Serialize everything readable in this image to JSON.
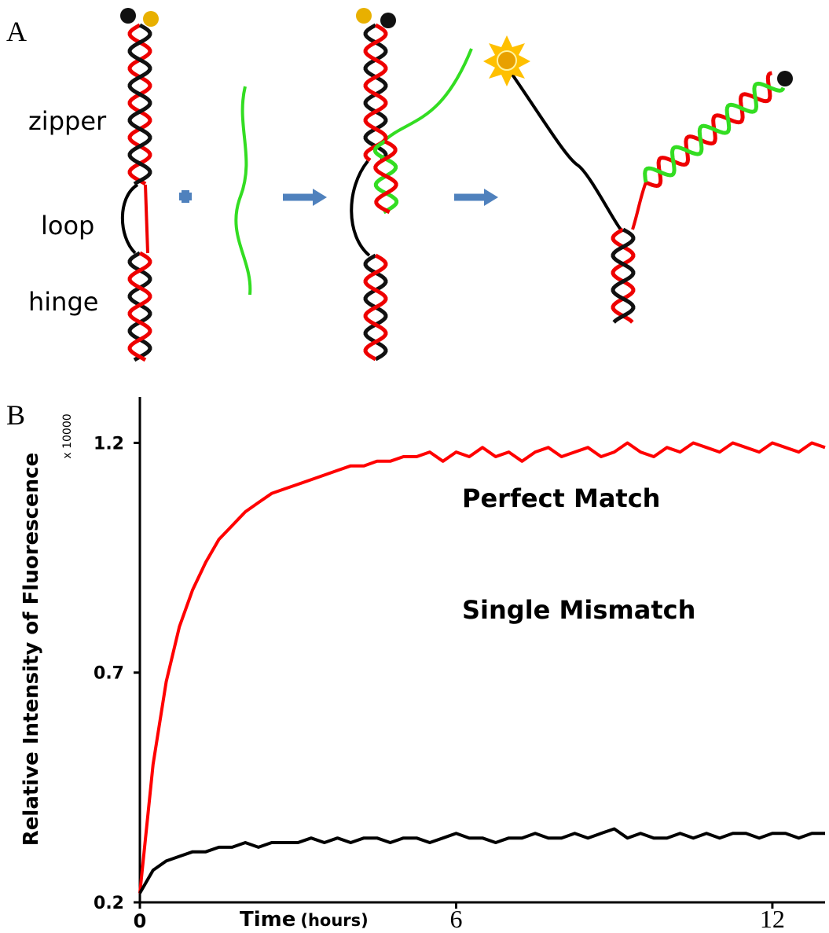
{
  "diagram": {
    "panel_label": "A",
    "labels": [
      "zipper",
      "loop",
      "hinge"
    ]
  },
  "chart_data": {
    "type": "line",
    "panel_label": "B",
    "y_label": "Relative Intensity of Fluorescence",
    "y_multiplier": "x 10000",
    "x_label": "Time",
    "x_unit": "(hours)",
    "x": [
      0,
      0.25,
      0.5,
      0.75,
      1,
      1.25,
      1.5,
      1.75,
      2,
      2.25,
      2.5,
      2.75,
      3,
      3.25,
      3.5,
      3.75,
      4,
      4.25,
      4.5,
      4.75,
      5,
      5.25,
      5.5,
      5.75,
      6,
      6.25,
      6.5,
      6.75,
      7,
      7.25,
      7.5,
      7.75,
      8,
      8.25,
      8.5,
      8.75,
      9,
      9.25,
      9.5,
      9.75,
      10,
      10.25,
      10.5,
      10.75,
      11,
      11.25,
      11.5,
      11.75,
      12,
      12.25,
      12.5,
      12.75,
      13
    ],
    "series": [
      {
        "name": "Perfect Match",
        "color": "#ff0000",
        "values": [
          0.22,
          0.5,
          0.68,
          0.8,
          0.88,
          0.94,
          0.99,
          1.02,
          1.05,
          1.07,
          1.09,
          1.1,
          1.11,
          1.12,
          1.13,
          1.14,
          1.15,
          1.15,
          1.16,
          1.16,
          1.17,
          1.17,
          1.18,
          1.16,
          1.18,
          1.17,
          1.19,
          1.17,
          1.18,
          1.16,
          1.18,
          1.19,
          1.17,
          1.18,
          1.19,
          1.17,
          1.18,
          1.2,
          1.18,
          1.17,
          1.19,
          1.18,
          1.2,
          1.19,
          1.18,
          1.2,
          1.19,
          1.18,
          1.2,
          1.19,
          1.18,
          1.2,
          1.19
        ]
      },
      {
        "name": "Single Mismatch",
        "color": "#000000",
        "values": [
          0.22,
          0.27,
          0.29,
          0.3,
          0.31,
          0.31,
          0.32,
          0.32,
          0.33,
          0.32,
          0.33,
          0.33,
          0.33,
          0.34,
          0.33,
          0.34,
          0.33,
          0.34,
          0.34,
          0.33,
          0.34,
          0.34,
          0.33,
          0.34,
          0.35,
          0.34,
          0.34,
          0.33,
          0.34,
          0.34,
          0.35,
          0.34,
          0.34,
          0.35,
          0.34,
          0.35,
          0.36,
          0.34,
          0.35,
          0.34,
          0.34,
          0.35,
          0.34,
          0.35,
          0.34,
          0.35,
          0.35,
          0.34,
          0.35,
          0.35,
          0.34,
          0.35,
          0.35
        ]
      }
    ],
    "xlim": [
      0,
      13
    ],
    "ylim": [
      0.2,
      1.3
    ],
    "xticks": [
      0,
      6,
      12
    ],
    "yticks": [
      0.2,
      0.7,
      1.2
    ]
  }
}
